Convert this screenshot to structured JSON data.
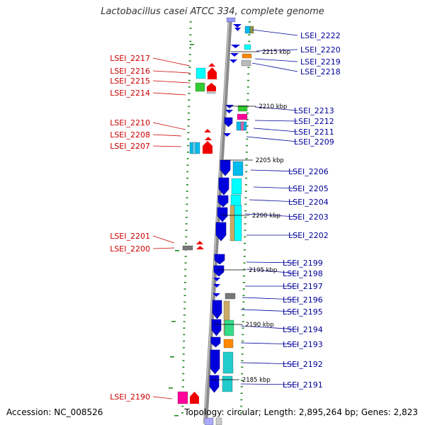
{
  "title": "Lactobacillus casei ATCC 334, complete genome",
  "footer": {
    "accession": "Accession: NC_008526",
    "topology": "Topology: circular; Length: 2,895,264 bp; Genes: 2,823"
  },
  "colors": {
    "backbone": "#888888",
    "forward_gene": "#0000dd",
    "reverse_gene": "#ee0000",
    "tick": "#228822",
    "left_label": "#cc0000",
    "right_label": "#000099"
  },
  "kbp_markers": [
    {
      "label": "2215 kbp",
      "y": 2215
    },
    {
      "label": "2210 kbp",
      "y": 2210
    },
    {
      "label": "2205 kbp",
      "y": 2205
    },
    {
      "label": "2200 kbp",
      "y": 2200
    },
    {
      "label": "2195 kbp",
      "y": 2195
    },
    {
      "label": "2190 kbp",
      "y": 2190
    },
    {
      "label": "2185 kbp",
      "y": 2185
    }
  ],
  "left_genes": [
    {
      "label": "LSEI_2217",
      "cat": "#00ffff"
    },
    {
      "label": "LSEI_2216",
      "cat": "#00ffff"
    },
    {
      "label": "LSEI_2215",
      "cat": "#33cc33"
    },
    {
      "label": "LSEI_2214",
      "cat": "#33cc33"
    },
    {
      "label": "LSEI_2210",
      "cat": ""
    },
    {
      "label": "LSEI_2208",
      "cat": "#00bbee"
    },
    {
      "label": "LSEI_2207",
      "cat": "#00bbee"
    },
    {
      "label": "LSEI_2201",
      "cat": "#777777"
    },
    {
      "label": "LSEI_2200",
      "cat": "#777777"
    },
    {
      "label": "LSEI_2190",
      "cat": "#ff0099"
    }
  ],
  "right_genes": [
    {
      "label": "LSEI_2222",
      "cat": "#00bbee"
    },
    {
      "label": "LSEI_2220",
      "cat": "#00ffff"
    },
    {
      "label": "LSEI_2219",
      "cat": "#ff8800"
    },
    {
      "label": "LSEI_2218",
      "cat": "#bbbbbb"
    },
    {
      "label": "LSEI_2213",
      "cat": "#33cc33"
    },
    {
      "label": "LSEI_2212",
      "cat": "#ff0099"
    },
    {
      "label": "LSEI_2211",
      "cat": "#00bbee"
    },
    {
      "label": "LSEI_2209",
      "cat": ""
    },
    {
      "label": "LSEI_2206",
      "cat": "#00bbee"
    },
    {
      "label": "LSEI_2205",
      "cat": "#00ffff"
    },
    {
      "label": "LSEI_2204",
      "cat": "#00ffff"
    },
    {
      "label": "LSEI_2203",
      "cat": "#ccaa66"
    },
    {
      "label": "LSEI_2202",
      "cat": "#00ffff"
    },
    {
      "label": "LSEI_2199",
      "cat": ""
    },
    {
      "label": "LSEI_2198",
      "cat": ""
    },
    {
      "label": "LSEI_2197",
      "cat": ""
    },
    {
      "label": "LSEI_2196",
      "cat": "#777777"
    },
    {
      "label": "LSEI_2195",
      "cat": "#ccaa66"
    },
    {
      "label": "LSEI_2194",
      "cat": "#33dd88"
    },
    {
      "label": "LSEI_2193",
      "cat": "#ff8800"
    },
    {
      "label": "LSEI_2192",
      "cat": "#22cccc"
    },
    {
      "label": "LSEI_2191",
      "cat": "#22cccc"
    }
  ]
}
